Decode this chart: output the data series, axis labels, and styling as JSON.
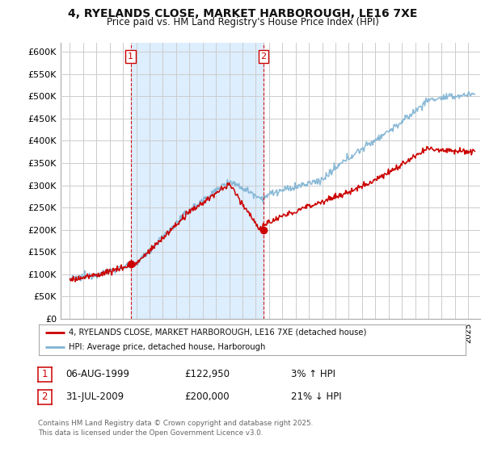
{
  "title": "4, RYELANDS CLOSE, MARKET HARBOROUGH, LE16 7XE",
  "subtitle": "Price paid vs. HM Land Registry's House Price Index (HPI)",
  "ylim": [
    0,
    620000
  ],
  "yticks": [
    0,
    50000,
    100000,
    150000,
    200000,
    250000,
    300000,
    350000,
    400000,
    450000,
    500000,
    550000,
    600000
  ],
  "ytick_labels": [
    "£0",
    "£50K",
    "£100K",
    "£150K",
    "£200K",
    "£250K",
    "£300K",
    "£350K",
    "£400K",
    "£450K",
    "£500K",
    "£550K",
    "£600K"
  ],
  "background_color": "#ffffff",
  "grid_color": "#cccccc",
  "shade_color": "#ddeeff",
  "legend_label_red": "4, RYELANDS CLOSE, MARKET HARBOROUGH, LE16 7XE (detached house)",
  "legend_label_blue": "HPI: Average price, detached house, Harborough",
  "annotation1_label": "1",
  "annotation1_date": "06-AUG-1999",
  "annotation1_price": "£122,950",
  "annotation1_change": "3% ↑ HPI",
  "annotation2_label": "2",
  "annotation2_date": "31-JUL-2009",
  "annotation2_price": "£200,000",
  "annotation2_change": "21% ↓ HPI",
  "footer": "Contains HM Land Registry data © Crown copyright and database right 2025.\nThis data is licensed under the Open Government Licence v3.0.",
  "red_color": "#cc0000",
  "blue_color": "#7fb3d3",
  "vline_color": "#cc0000",
  "sale1_year": 1999.58,
  "sale1_price": 122950,
  "sale2_year": 2009.58,
  "sale2_price": 200000,
  "xlim_left": 1994.3,
  "xlim_right": 2025.9
}
